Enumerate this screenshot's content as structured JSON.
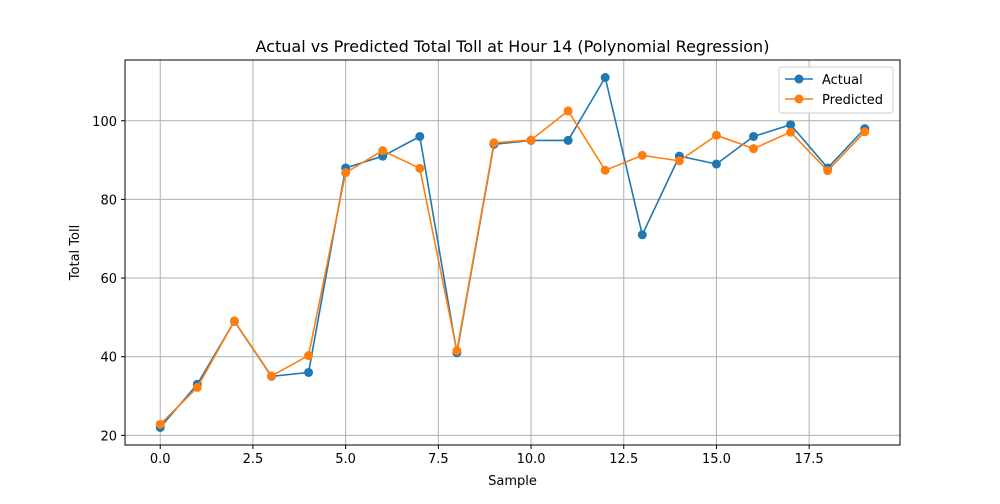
{
  "chart_data": {
    "type": "line",
    "title": "Actual vs Predicted Total Toll at Hour 14 (Polynomial Regression)",
    "xlabel": "Sample",
    "ylabel": "Total Toll",
    "x": [
      0,
      1,
      2,
      3,
      4,
      5,
      6,
      7,
      8,
      9,
      10,
      11,
      12,
      13,
      14,
      15,
      16,
      17,
      18,
      19
    ],
    "series": [
      {
        "name": "Actual",
        "color": "#1f77b4",
        "values": [
          22,
          33,
          49,
          35,
          36,
          88,
          91,
          96,
          41,
          94,
          95,
          95,
          111,
          71,
          91,
          89,
          96,
          99,
          88,
          98
        ]
      },
      {
        "name": "Predicted",
        "color": "#ff7f0e",
        "values": [
          22.8,
          32.2,
          49.1,
          35.1,
          40.3,
          86.8,
          92.4,
          87.9,
          41.5,
          94.4,
          95.1,
          102.5,
          87.4,
          91.2,
          89.8,
          96.3,
          92.9,
          97.1,
          87.3,
          97.2
        ]
      }
    ],
    "xlim": [
      -0.95,
      19.95
    ],
    "ylim": [
      17.55,
      115.45
    ],
    "x_ticks": [
      "0.0",
      "2.5",
      "5.0",
      "7.5",
      "10.0",
      "12.5",
      "15.0",
      "17.5"
    ],
    "y_ticks": [
      "20",
      "40",
      "60",
      "80",
      "100"
    ],
    "grid": true,
    "legend_position": "top-right"
  }
}
